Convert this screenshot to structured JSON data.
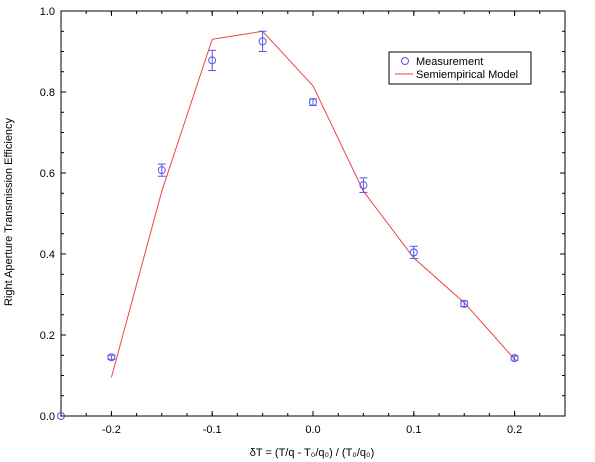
{
  "chart_data": {
    "type": "scatter",
    "xlabel": "δT = (T/q - T₀/q₀) / (T₀/q₀)",
    "ylabel": "Right Aperture Transmission Efficiency",
    "xlim": [
      -0.25,
      0.25
    ],
    "ylim": [
      0.0,
      1.0
    ],
    "xticks": [
      -0.2,
      -0.1,
      0.0,
      0.1,
      0.2
    ],
    "xtick_labels": [
      "-0.2",
      "-0.1",
      "0.0",
      "0.1",
      "0.2"
    ],
    "yticks": [
      0.0,
      0.2,
      0.4,
      0.6,
      0.8,
      1.0
    ],
    "ytick_labels": [
      "0.0",
      "0.2",
      "0.4",
      "0.6",
      "0.8",
      "1.0"
    ],
    "grid": false,
    "legend_position": "top-right",
    "series": [
      {
        "name": "Measurement",
        "kind": "points-with-errorbars",
        "color": "#5555ee",
        "x": [
          -0.25,
          -0.2,
          -0.15,
          -0.1,
          -0.05,
          0.0,
          0.05,
          0.1,
          0.15,
          0.2
        ],
        "y": [
          0.0,
          0.145,
          0.607,
          0.878,
          0.925,
          0.775,
          0.57,
          0.404,
          0.277,
          0.143
        ],
        "err": [
          0.0,
          0.005,
          0.015,
          0.025,
          0.025,
          0.008,
          0.018,
          0.015,
          0.007,
          0.005
        ]
      },
      {
        "name": "Semiempirical Model",
        "kind": "line",
        "color": "#ee4444",
        "x": [
          -0.2,
          -0.15,
          -0.1,
          -0.05,
          0.0,
          0.05,
          0.1,
          0.15,
          0.2
        ],
        "y": [
          0.095,
          0.555,
          0.93,
          0.95,
          0.815,
          0.555,
          0.39,
          0.28,
          0.14
        ]
      }
    ]
  }
}
